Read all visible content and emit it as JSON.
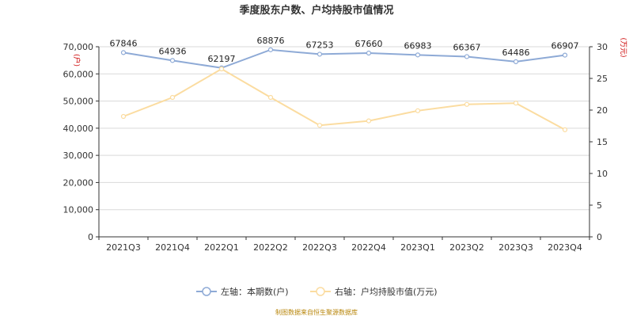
{
  "chart_data": {
    "type": "line",
    "title": "季度股东户数、户均持股市值情况",
    "categories": [
      "2021Q3",
      "2021Q4",
      "2022Q1",
      "2022Q2",
      "2022Q3",
      "2022Q4",
      "2023Q1",
      "2023Q2",
      "2023Q3",
      "2023Q4"
    ],
    "series": [
      {
        "name": "左轴：本期数(户)",
        "axis": "left",
        "color": "#8eaad6",
        "values": [
          67846,
          64936,
          62197,
          68876,
          67253,
          67660,
          66983,
          66367,
          64486,
          66907
        ],
        "labels": [
          "67846",
          "64936",
          "62197",
          "68876",
          "67253",
          "67660",
          "66983",
          "66367",
          "64486",
          "66907"
        ]
      },
      {
        "name": "右轴：户均持股市值(万元)",
        "axis": "right",
        "color": "#fbdca0",
        "values": [
          19.0,
          22.0,
          26.5,
          22.0,
          17.6,
          18.3,
          19.9,
          20.9,
          21.1,
          16.9
        ]
      }
    ],
    "ylim_left": [
      0,
      70000
    ],
    "ylim_right": [
      0,
      30
    ],
    "yticks_left": [
      "0",
      "10,000",
      "20,000",
      "30,000",
      "40,000",
      "50,000",
      "60,000",
      "70,000"
    ],
    "yticks_right": [
      "0",
      "5",
      "10",
      "15",
      "20",
      "25",
      "30"
    ],
    "ylabel_left": "(户)",
    "ylabel_right": "(万元)",
    "grid": true,
    "legend_position": "bottom",
    "source": "制图数据来自恒生聚源数据库"
  }
}
